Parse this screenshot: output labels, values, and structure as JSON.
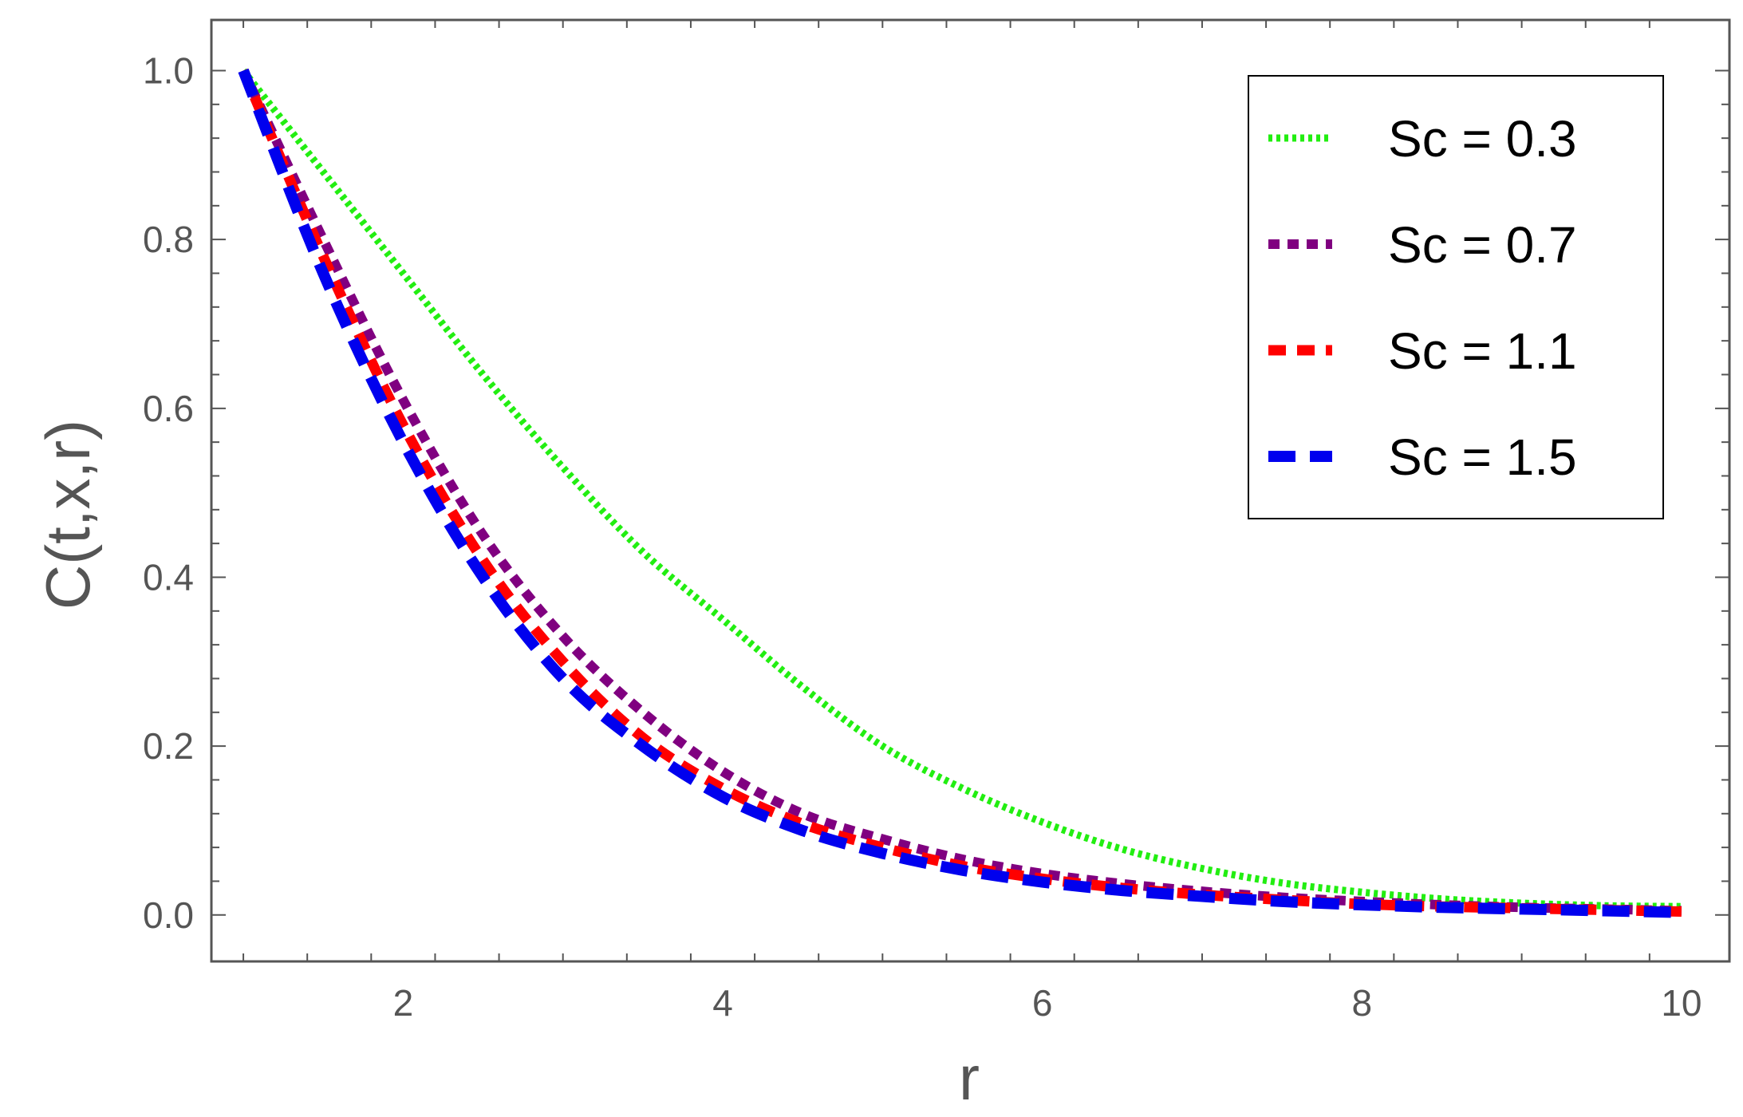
{
  "chart_data": {
    "type": "line",
    "xlabel": "r",
    "ylabel": "C(t,x,r)",
    "xlim": [
      0.8,
      10.3
    ],
    "ylim": [
      -0.055,
      1.06
    ],
    "x_ticks": [
      2,
      4,
      6,
      8,
      10
    ],
    "x_tick_labels": [
      "2",
      "4",
      "6",
      "8",
      "10"
    ],
    "y_ticks": [
      0.0,
      0.2,
      0.4,
      0.6,
      0.8,
      1.0
    ],
    "y_tick_labels": [
      "0.0",
      "0.2",
      "0.4",
      "0.6",
      "0.8",
      "1.0"
    ],
    "grid": false,
    "legend_position": "top-right",
    "x": [
      1,
      1.5,
      2,
      2.5,
      3,
      3.5,
      4,
      4.5,
      5,
      5.5,
      6,
      6.5,
      7,
      7.5,
      8,
      8.5,
      9,
      9.5,
      10
    ],
    "series": [
      {
        "name": "Sc = 0.3",
        "color": "#22ee11",
        "dash": "dotted",
        "values": [
          1.0,
          0.88,
          0.76,
          0.64,
          0.53,
          0.43,
          0.35,
          0.27,
          0.2,
          0.15,
          0.11,
          0.078,
          0.055,
          0.038,
          0.027,
          0.019,
          0.014,
          0.011,
          0.01
        ]
      },
      {
        "name": "Sc = 0.7",
        "color": "#800080",
        "dash": "small-dash",
        "values": [
          1.0,
          0.8,
          0.61,
          0.45,
          0.33,
          0.24,
          0.17,
          0.12,
          0.09,
          0.066,
          0.049,
          0.037,
          0.028,
          0.021,
          0.016,
          0.012,
          0.009,
          0.007,
          0.005
        ]
      },
      {
        "name": "Sc = 1.1",
        "color": "#ff0000",
        "dash": "dashed",
        "values": [
          1.0,
          0.78,
          0.58,
          0.42,
          0.3,
          0.21,
          0.15,
          0.108,
          0.08,
          0.058,
          0.043,
          0.032,
          0.024,
          0.018,
          0.013,
          0.01,
          0.008,
          0.006,
          0.004
        ]
      },
      {
        "name": "Sc = 1.5",
        "color": "#0000ee",
        "dash": "long-dash",
        "values": [
          1.0,
          0.76,
          0.56,
          0.4,
          0.28,
          0.2,
          0.14,
          0.1,
          0.073,
          0.053,
          0.039,
          0.029,
          0.022,
          0.016,
          0.012,
          0.009,
          0.007,
          0.005,
          0.003
        ]
      }
    ]
  }
}
